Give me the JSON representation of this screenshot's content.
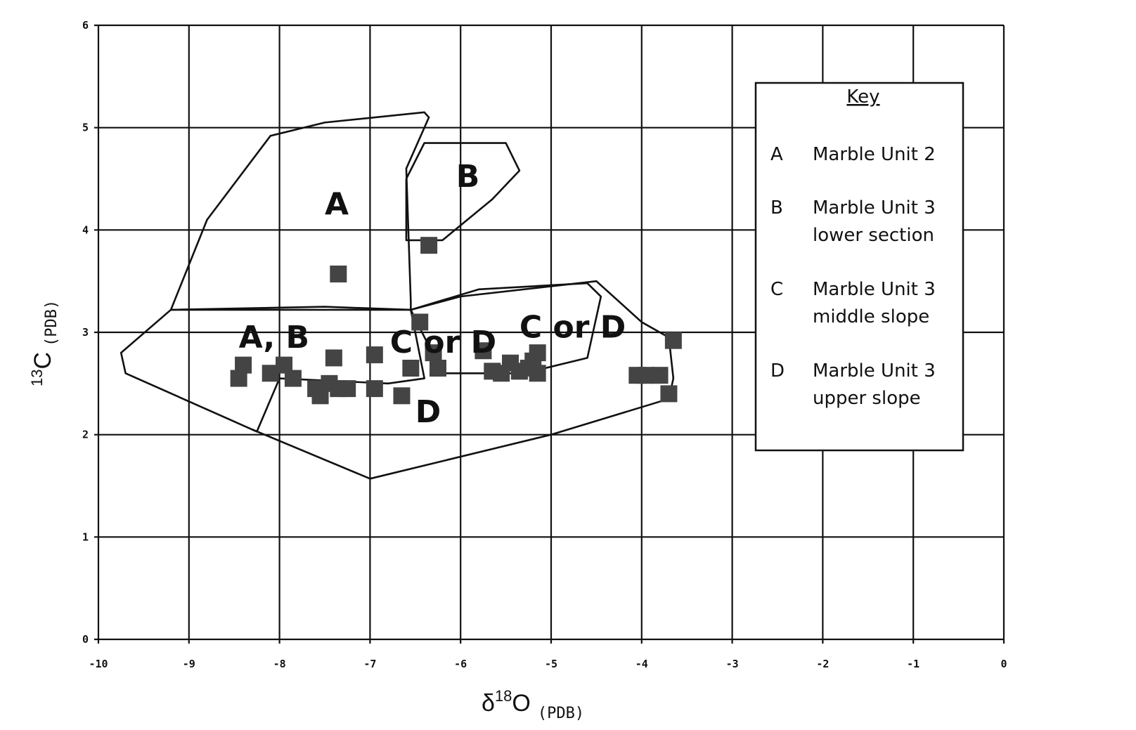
{
  "chart_data": {
    "type": "scatter",
    "xlabel": "δ18O (PDB)",
    "xlabel_main": "δ",
    "xlabel_sup": "18",
    "xlabel_letter": "O",
    "xlabel_sub": "(PDB)",
    "ylabel": "13C (PDB)",
    "ylabel_sup": "13",
    "ylabel_letter": "C",
    "ylabel_sub": "(PDB)",
    "xlim": [
      -10,
      0
    ],
    "ylim": [
      0,
      6
    ],
    "x_ticks": [
      -10,
      -9,
      -8,
      -7,
      -6,
      -5,
      -4,
      -3,
      -2,
      -1,
      0
    ],
    "y_ticks": [
      0,
      1,
      2,
      3,
      4,
      5,
      6
    ],
    "grid": true,
    "legend_position": "right",
    "points": [
      {
        "x": -7.35,
        "y": 3.57
      },
      {
        "x": -6.35,
        "y": 3.85
      },
      {
        "x": -8.45,
        "y": 2.55
      },
      {
        "x": -8.4,
        "y": 2.68
      },
      {
        "x": -8.1,
        "y": 2.6
      },
      {
        "x": -7.95,
        "y": 2.68
      },
      {
        "x": -7.85,
        "y": 2.55
      },
      {
        "x": -7.6,
        "y": 2.45
      },
      {
        "x": -7.55,
        "y": 2.38
      },
      {
        "x": -7.45,
        "y": 2.5
      },
      {
        "x": -7.35,
        "y": 2.45
      },
      {
        "x": -7.25,
        "y": 2.45
      },
      {
        "x": -7.4,
        "y": 2.75
      },
      {
        "x": -6.95,
        "y": 2.45
      },
      {
        "x": -6.95,
        "y": 2.78
      },
      {
        "x": -6.65,
        "y": 2.38
      },
      {
        "x": -6.55,
        "y": 2.65
      },
      {
        "x": -6.45,
        "y": 3.1
      },
      {
        "x": -6.3,
        "y": 2.8
      },
      {
        "x": -6.25,
        "y": 2.65
      },
      {
        "x": -5.75,
        "y": 2.82
      },
      {
        "x": -5.65,
        "y": 2.62
      },
      {
        "x": -5.55,
        "y": 2.6
      },
      {
        "x": -5.45,
        "y": 2.7
      },
      {
        "x": -5.35,
        "y": 2.62
      },
      {
        "x": -5.25,
        "y": 2.65
      },
      {
        "x": -5.2,
        "y": 2.72
      },
      {
        "x": -5.15,
        "y": 2.6
      },
      {
        "x": -5.15,
        "y": 2.8
      },
      {
        "x": -4.05,
        "y": 2.58
      },
      {
        "x": -3.95,
        "y": 2.58
      },
      {
        "x": -3.8,
        "y": 2.58
      },
      {
        "x": -3.65,
        "y": 2.92
      },
      {
        "x": -3.7,
        "y": 2.4
      }
    ],
    "regions": [
      {
        "label": "A",
        "label_at": [
          -7.5,
          4.15
        ],
        "points": [
          [
            -9.2,
            3.22
          ],
          [
            -8.8,
            4.1
          ],
          [
            -8.1,
            4.92
          ],
          [
            -7.5,
            5.05
          ],
          [
            -6.4,
            5.15
          ],
          [
            -6.35,
            5.1
          ],
          [
            -6.6,
            4.6
          ],
          [
            -6.55,
            3.3
          ],
          [
            -6.55,
            3.22
          ],
          [
            -7.5,
            3.25
          ],
          [
            -9.2,
            3.22
          ]
        ]
      },
      {
        "label": "B",
        "label_at": [
          -6.05,
          4.42
        ],
        "points": [
          [
            -6.6,
            4.5
          ],
          [
            -6.4,
            4.85
          ],
          [
            -5.5,
            4.85
          ],
          [
            -5.35,
            4.58
          ],
          [
            -5.65,
            4.3
          ],
          [
            -6.2,
            3.9
          ],
          [
            -6.6,
            3.9
          ],
          [
            -6.6,
            4.5
          ]
        ]
      },
      {
        "label": "A, B",
        "label_at": [
          -8.45,
          2.85
        ],
        "points": [
          [
            -9.2,
            3.22
          ],
          [
            -9.75,
            2.8
          ],
          [
            -9.7,
            2.6
          ],
          [
            -8.25,
            2.03
          ],
          [
            -8.0,
            2.55
          ],
          [
            -6.8,
            2.5
          ],
          [
            -6.4,
            2.55
          ],
          [
            -6.55,
            3.22
          ],
          [
            -9.2,
            3.22
          ]
        ]
      },
      {
        "label": "C or D",
        "label_at": [
          -6.78,
          2.8
        ],
        "points": [
          [
            -6.55,
            3.22
          ],
          [
            -6.0,
            3.35
          ],
          [
            -4.5,
            3.5
          ],
          [
            -4.0,
            3.1
          ],
          [
            -3.7,
            2.95
          ],
          [
            -3.65,
            2.55
          ],
          [
            -3.7,
            2.35
          ],
          [
            -5.0,
            2.0
          ],
          [
            -7.0,
            1.57
          ],
          [
            -8.3,
            2.05
          ]
        ]
      },
      {
        "label": "C or D",
        "label_at": [
          -5.35,
          2.95
        ],
        "points": [
          [
            -6.55,
            3.22
          ],
          [
            -5.8,
            3.42
          ],
          [
            -4.6,
            3.48
          ],
          [
            -4.45,
            3.35
          ],
          [
            -4.6,
            2.75
          ],
          [
            -5.3,
            2.6
          ],
          [
            -6.2,
            2.6
          ],
          [
            -6.55,
            3.22
          ]
        ]
      },
      {
        "label": "D",
        "label_at": [
          -6.5,
          2.12
        ],
        "points": []
      }
    ],
    "legend": {
      "title": "Key",
      "entries": [
        {
          "code": "A",
          "lines": [
            "Marble Unit 2"
          ]
        },
        {
          "code": "B",
          "lines": [
            "Marble Unit 3",
            "lower section"
          ]
        },
        {
          "code": "C",
          "lines": [
            "Marble Unit 3",
            "middle slope"
          ]
        },
        {
          "code": "D",
          "lines": [
            "Marble Unit 3",
            "upper slope"
          ]
        }
      ]
    },
    "colors": {
      "point": "#444444",
      "grid": "#111111",
      "line": "#111111"
    }
  }
}
